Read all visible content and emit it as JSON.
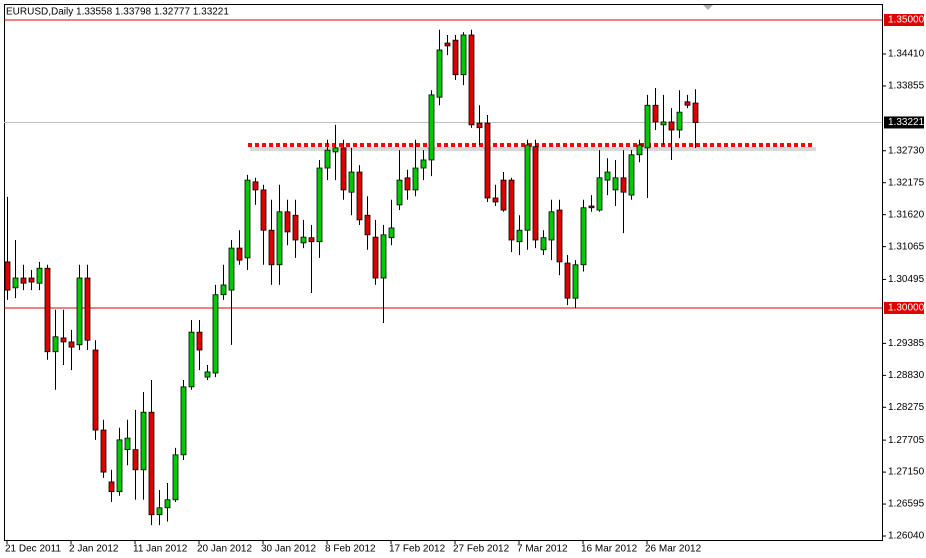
{
  "chart_data": {
    "type": "candlestick",
    "title": "EURUSD,Daily  1.33558 1.33798 1.32777 1.33221",
    "categories": [
      "21 Dec 2011",
      null,
      null,
      null,
      null,
      null,
      null,
      null,
      "2 Jan 2012",
      null,
      null,
      null,
      null,
      null,
      null,
      null,
      "11 Jan 2012",
      null,
      null,
      null,
      null,
      null,
      null,
      null,
      "20 Jan 2012",
      null,
      null,
      null,
      null,
      null,
      null,
      null,
      "30 Jan 2012",
      null,
      null,
      null,
      null,
      null,
      null,
      null,
      "8 Feb 2012",
      null,
      null,
      null,
      null,
      null,
      null,
      null,
      "17 Feb 2012",
      null,
      null,
      null,
      null,
      null,
      null,
      null,
      "27 Feb 2012",
      null,
      null,
      null,
      null,
      null,
      null,
      null,
      "7 Mar 2012",
      null,
      null,
      null,
      null,
      null,
      null,
      null,
      "16 Mar 2012",
      null,
      null,
      null,
      null,
      null,
      null,
      null,
      "26 Mar 2012",
      null,
      null,
      null,
      null,
      null,
      null
    ],
    "open": [
      1.308,
      1.3035,
      1.3052,
      1.3052,
      1.3043,
      1.3069,
      1.2924,
      1.2948,
      1.2941,
      1.2936,
      1.3052,
      1.2927,
      1.2788,
      1.2698,
      1.2681,
      1.2754,
      1.2754,
      1.2719,
      1.2819,
      1.2641,
      1.2653,
      1.2667,
      1.2745,
      1.2863,
      1.2958,
      1.288,
      1.2887,
      1.3023,
      1.3031,
      1.3104,
      1.3087,
      1.3219,
      1.3205,
      1.3135,
      1.3075,
      1.3167,
      1.3161,
      1.3113,
      1.3122,
      1.3115,
      1.3243,
      1.3271,
      1.3278,
      1.3201,
      1.3236,
      1.3161,
      1.3123,
      1.3052,
      1.3122,
      1.3179,
      1.3226,
      1.3205,
      1.3243,
      1.3257,
      1.3366,
      1.346,
      1.3465,
      1.3405,
      1.3474,
      1.3321,
      1.3321,
      1.3191,
      1.3222,
      1.3222,
      1.3115,
      1.3135,
      1.328,
      1.3101,
      1.3118,
      1.317,
      1.3078,
      1.3017,
      1.3075,
      1.3177,
      1.317,
      1.3222,
      1.3205,
      1.3226,
      1.3196,
      1.3266,
      1.3278,
      1.3352,
      1.3318,
      1.3323,
      1.3309,
      1.3358,
      1.33558
    ],
    "high": [
      1.3193,
      1.3118,
      1.3075,
      1.3066,
      1.308,
      1.3075,
      1.2997,
      1.2997,
      1.2962,
      1.3075,
      1.3075,
      1.2944,
      1.2806,
      1.2719,
      1.2792,
      1.2806,
      1.2823,
      1.2854,
      1.2875,
      1.2684,
      1.2696,
      1.2757,
      1.2875,
      1.2979,
      1.2979,
      1.2901,
      1.304,
      1.3075,
      1.3118,
      1.3135,
      1.3231,
      1.3226,
      1.3214,
      1.3188,
      1.3214,
      1.3188,
      1.3188,
      1.3153,
      1.3144,
      1.3257,
      1.3292,
      1.3318,
      1.3292,
      1.3278,
      1.3248,
      1.3194,
      1.3153,
      1.3144,
      1.3188,
      1.3274,
      1.324,
      1.3292,
      1.3274,
      1.3378,
      1.3483,
      1.3474,
      1.3474,
      1.3479,
      1.3483,
      1.3352,
      1.3335,
      1.3214,
      1.3236,
      1.3226,
      1.3161,
      1.3292,
      1.3292,
      1.3135,
      1.3188,
      1.3188,
      1.3092,
      1.3083,
      1.3188,
      1.3196,
      1.3274,
      1.326,
      1.3257,
      1.3274,
      1.3274,
      1.3292,
      1.337,
      1.3382,
      1.337,
      1.3347,
      1.3378,
      1.337,
      1.33798
    ],
    "low": [
      1.3014,
      1.3017,
      1.3031,
      1.3031,
      1.3031,
      1.291,
      1.2858,
      1.2901,
      1.2892,
      1.2927,
      1.2927,
      1.2771,
      1.2705,
      1.2663,
      1.2674,
      1.2727,
      1.2667,
      1.2667,
      1.2623,
      1.2623,
      1.2629,
      1.2663,
      1.2736,
      1.2858,
      1.2892,
      1.2875,
      1.288,
      1.3014,
      1.2936,
      1.3075,
      1.3066,
      1.3179,
      1.3075,
      1.304,
      1.304,
      1.3109,
      1.3087,
      1.3104,
      1.3026,
      1.3087,
      1.3222,
      1.3222,
      1.3188,
      1.3161,
      1.3144,
      1.3101,
      1.304,
      1.2974,
      1.3109,
      1.317,
      1.3188,
      1.3194,
      1.3222,
      1.3229,
      1.3352,
      1.3439,
      1.3396,
      1.3387,
      1.3313,
      1.3283,
      1.3184,
      1.3177,
      1.3167,
      1.3097,
      1.3092,
      1.3101,
      1.3104,
      1.3092,
      1.3083,
      1.3057,
      1.3005,
      1.3,
      1.3063,
      1.3167,
      1.3167,
      1.3196,
      1.3177,
      1.313,
      1.3188,
      1.3253,
      1.3191,
      1.3309,
      1.3283,
      1.3257,
      1.3295,
      1.3347,
      1.32777
    ],
    "close": [
      1.3031,
      1.3052,
      1.3043,
      1.3045,
      1.3069,
      1.2924,
      1.295,
      1.2941,
      1.2932,
      1.3052,
      1.2944,
      1.2788,
      1.2715,
      1.2681,
      1.2771,
      1.2774,
      1.2719,
      1.2819,
      1.2641,
      1.2653,
      1.2667,
      1.2745,
      1.2863,
      1.2958,
      1.2927,
      1.2889,
      1.3023,
      1.304,
      1.3104,
      1.3083,
      1.3222,
      1.3205,
      1.3135,
      1.3075,
      1.3167,
      1.3132,
      1.3118,
      1.3123,
      1.3115,
      1.3243,
      1.3274,
      1.3278,
      1.3205,
      1.3236,
      1.3153,
      1.3127,
      1.3052,
      1.3127,
      1.3139,
      1.3222,
      1.3205,
      1.3243,
      1.3257,
      1.337,
      1.3448,
      1.3455,
      1.3405,
      1.3474,
      1.3318,
      1.3313,
      1.3191,
      1.3184,
      1.317,
      1.3118,
      1.3135,
      1.3283,
      1.3118,
      1.3122,
      1.3167,
      1.308,
      1.3017,
      1.3075,
      1.3174,
      1.3174,
      1.3226,
      1.3236,
      1.3226,
      1.3201,
      1.3266,
      1.3283,
      1.3352,
      1.3323,
      1.3323,
      1.3309,
      1.334,
      1.3352,
      1.33221
    ],
    "up_color": "#00c800",
    "down_color": "#dc0000",
    "ylim": [
      1.25971,
      1.35278
    ],
    "yticks": [
      {
        "value": 1.3441,
        "label": "1.34410"
      },
      {
        "value": 1.33855,
        "label": "1.33855"
      },
      {
        "value": 1.3273,
        "label": "1.32730"
      },
      {
        "value": 1.32175,
        "label": "1.32175"
      },
      {
        "value": 1.3162,
        "label": "1.31620"
      },
      {
        "value": 1.31065,
        "label": "1.31065"
      },
      {
        "value": 1.30495,
        "label": "1.30495"
      },
      {
        "value": 1.29385,
        "label": "1.29385"
      },
      {
        "value": 1.2883,
        "label": "1.28830"
      },
      {
        "value": 1.28275,
        "label": "1.28275"
      },
      {
        "value": 1.27705,
        "label": "1.27705"
      },
      {
        "value": 1.2715,
        "label": "1.27150"
      },
      {
        "value": 1.26595,
        "label": "1.26595"
      },
      {
        "value": 1.2604,
        "label": "1.26040"
      }
    ],
    "levels": [
      {
        "value": 1.35,
        "label": "1.35000"
      },
      {
        "value": 1.3,
        "label": "1.30000"
      }
    ],
    "level_color": "#e00000",
    "last_price": 1.33221,
    "resistance": 1.3283
  }
}
